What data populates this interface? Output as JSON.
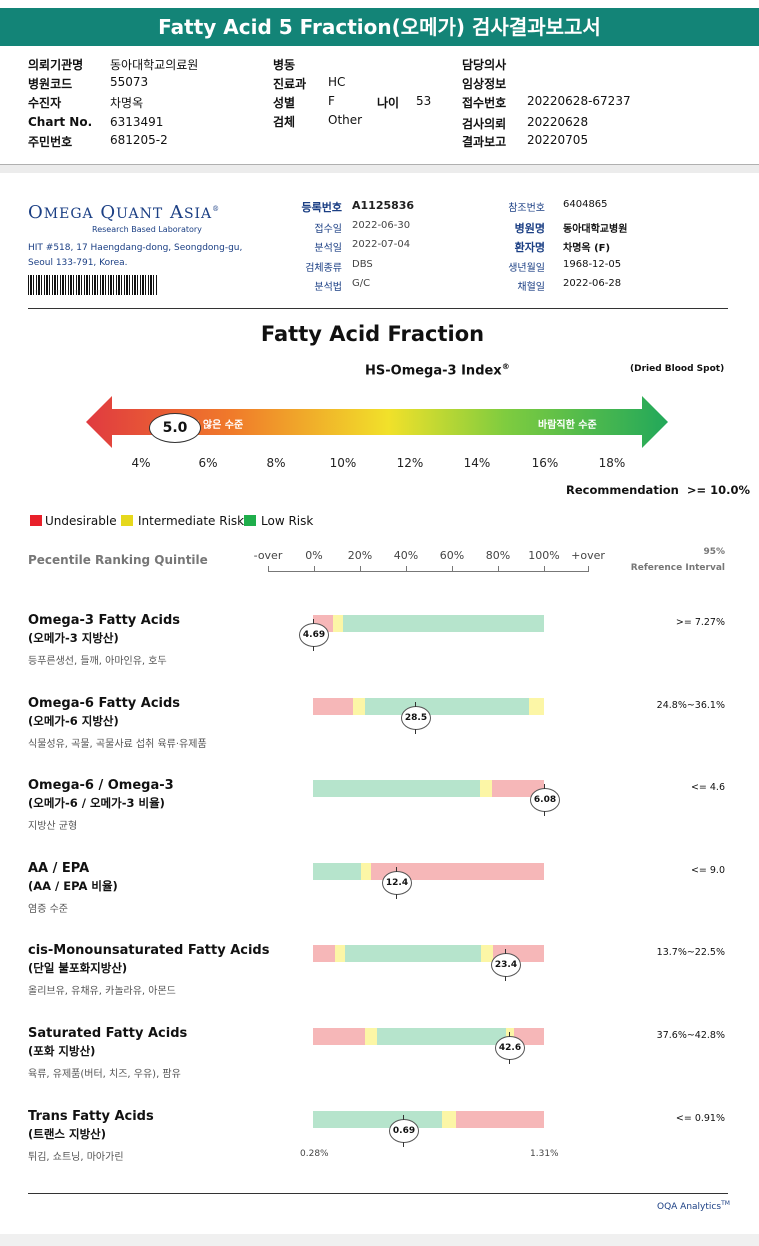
{
  "report": {
    "title": "Fatty Acid 5 Fraction(오메가) 검사결과보고서",
    "fields_col1": [
      {
        "label": "의뢰기관명",
        "value": "동아대학교의료원"
      },
      {
        "label": "병원코드",
        "value": "55073"
      },
      {
        "label": "수진자",
        "value": "차명옥"
      },
      {
        "label": "Chart No.",
        "value": "6313491"
      },
      {
        "label": "주민번호",
        "value": "681205-2"
      }
    ],
    "fields_col2": [
      {
        "label": "병동",
        "value": ""
      },
      {
        "label": "진료과",
        "value": "HC"
      },
      {
        "label": "성별",
        "value": "F"
      },
      {
        "label": "검체",
        "value": "Other"
      }
    ],
    "age_label": "나이",
    "age_value": "53",
    "fields_col3": [
      {
        "label": "담당의사",
        "value": ""
      },
      {
        "label": "임상정보",
        "value": ""
      },
      {
        "label": "접수번호",
        "value": "20220628-67237"
      },
      {
        "label": "검사의뢰",
        "value": "20220628"
      },
      {
        "label": "결과보고",
        "value": "20220705"
      }
    ]
  },
  "lab": {
    "name_O": "O",
    "name_mega": "MEGA",
    "name_Q": "Q",
    "name_uant": "UANT",
    "name_A": "A",
    "name_sia": "SIA",
    "tm": "®",
    "tagline": "Research Based Laboratory",
    "address1": "HIT #518, 17 Haengdang-dong, Seongdong-gu,",
    "address2": "Seoul 133-791, Korea.",
    "fields_mid": [
      {
        "label": "등록번호",
        "value": "A1125836",
        "bold": true
      },
      {
        "label": "접수일",
        "value": "2022-06-30"
      },
      {
        "label": "분석일",
        "value": "2022-07-04"
      },
      {
        "label": "검체종류",
        "value": "DBS"
      },
      {
        "label": "분석법",
        "value": "G/C"
      }
    ],
    "fields_right": [
      {
        "label": "참조번호",
        "value": "6404865"
      },
      {
        "label": "병원명",
        "value": "동아대학교병원",
        "bold": true
      },
      {
        "label": "환자명",
        "value": "차명옥 (F)",
        "bold": true
      },
      {
        "label": "생년월일",
        "value": "1968-12-05"
      },
      {
        "label": "채혈일",
        "value": "2022-06-28"
      }
    ]
  },
  "fraction": {
    "heading": "Fatty Acid Fraction",
    "index_label": "HS-Omega-3 Index",
    "index_mark": "®",
    "sample_note": "(Dried Blood Spot)",
    "bad_text": "바람직하지 않은 수준",
    "bad_visible": "l 않은 수준",
    "good_text": "바람직한 수준",
    "value": "5.0",
    "value_num": 5.0,
    "scale_min": 3,
    "scale_max": 19,
    "ticks": [
      "4%",
      "6%",
      "8%",
      "10%",
      "12%",
      "14%",
      "16%",
      "18%"
    ],
    "recommendation_label": "Recommendation",
    "recommendation_value": ">= 10.0%"
  },
  "legend": [
    {
      "label": "Undesirable",
      "color": "#e8202a"
    },
    {
      "label": "Intermediate Risk",
      "color": "#e6d81c"
    },
    {
      "label": "Low Risk",
      "color": "#1fae4b"
    }
  ],
  "percentile": {
    "title": "Pecentile Ranking Quintile",
    "scale": [
      "-over",
      "0%",
      "20%",
      "40%",
      "60%",
      "80%",
      "100%",
      "+over"
    ],
    "ref_header1": "95%",
    "ref_header2": "Reference Interval"
  },
  "colors": {
    "red": "#f6b7b8",
    "yellow": "#fcf6a6",
    "green": "#b6e4cc",
    "teal": "#138477"
  },
  "rows": [
    {
      "title": "Omega-3 Fatty Acids",
      "sub": "(오메가-3 지방산)",
      "desc": "등푸른생선, 들깨, 아마인유, 호두",
      "value": "4.69",
      "ref": ">= 7.27%",
      "segments": [
        {
          "c": "red",
          "w": 20
        },
        {
          "c": "yellow",
          "w": 10
        },
        {
          "c": "green",
          "w": 200
        }
      ],
      "marker_pct": 0.0
    },
    {
      "title": "Omega-6 Fatty Acids",
      "sub": "(오메가-6 지방산)",
      "desc": "식물성유, 곡물, 곡물사료 섭취 육류·유제품",
      "value": "28.5",
      "ref": "24.8%~36.1%",
      "segments": [
        {
          "c": "red",
          "w": 40
        },
        {
          "c": "yellow",
          "w": 12
        },
        {
          "c": "green",
          "w": 163
        },
        {
          "c": "yellow",
          "w": 15
        }
      ],
      "marker_pct": 0.44
    },
    {
      "title": "Omega-6 / Omega-3",
      "sub": "(오메가-6 / 오메가-3 비율)",
      "desc": "지방산 균형",
      "value": "6.08",
      "ref": "<= 4.6",
      "segments": [
        {
          "c": "green",
          "w": 166
        },
        {
          "c": "yellow",
          "w": 12
        },
        {
          "c": "red",
          "w": 52
        }
      ],
      "marker_pct": 1.0
    },
    {
      "title": "AA / EPA",
      "sub": "(AA / EPA 비율)",
      "desc": "염증 수준",
      "value": "12.4",
      "ref": "<= 9.0",
      "segments": [
        {
          "c": "green",
          "w": 48
        },
        {
          "c": "yellow",
          "w": 10
        },
        {
          "c": "red",
          "w": 172
        }
      ],
      "marker_pct": 0.36
    },
    {
      "title": "cis-Monounsaturated Fatty Acids",
      "sub": "(단일 불포화지방산)",
      "desc": "올리브유, 유채유, 카놀라유, 아몬드",
      "value": "23.4",
      "ref": "13.7%~22.5%",
      "segments": [
        {
          "c": "red",
          "w": 22
        },
        {
          "c": "yellow",
          "w": 10
        },
        {
          "c": "green",
          "w": 135
        },
        {
          "c": "yellow",
          "w": 12
        },
        {
          "c": "red",
          "w": 51
        }
      ],
      "marker_pct": 0.83
    },
    {
      "title": "Saturated Fatty Acids",
      "sub": "(포화 지방산)",
      "desc": "육류, 유제품(버터, 치즈, 우유), 팜유",
      "value": "42.6",
      "ref": "37.6%~42.8%",
      "segments": [
        {
          "c": "red",
          "w": 52
        },
        {
          "c": "yellow",
          "w": 12
        },
        {
          "c": "green",
          "w": 130
        },
        {
          "c": "yellow",
          "w": 8
        },
        {
          "c": "red",
          "w": 30
        }
      ],
      "marker_pct": 0.85
    },
    {
      "title": "Trans Fatty Acids",
      "sub": "(트랜스 지방산)",
      "desc": "튀김, 쇼트닝, 마아가린",
      "value": "0.69",
      "ref": "<= 0.91%",
      "segments": [
        {
          "c": "green",
          "w": 128
        },
        {
          "c": "yellow",
          "w": 14
        },
        {
          "c": "red",
          "w": 88
        }
      ],
      "marker_pct": 0.39
    }
  ],
  "trans_axis": {
    "min": "0.28%",
    "max": "1.31%"
  },
  "footer": {
    "brand": "OQA Analytics",
    "tm": "TM"
  }
}
